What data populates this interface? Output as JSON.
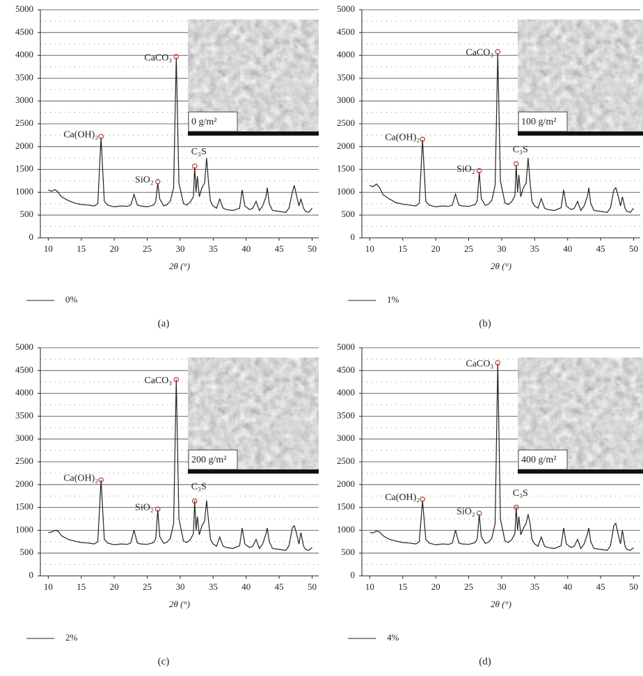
{
  "chart_data": [
    {
      "type": "line",
      "caption": "(a)",
      "x_label": "2θ (°)",
      "inset_label": "0 g/m²",
      "xlim": [
        8.8,
        51
      ],
      "xticks": [
        10,
        15,
        20,
        25,
        30,
        35,
        40,
        45,
        50
      ],
      "ylim": [
        0,
        5000
      ],
      "yticks": [
        0,
        500,
        1000,
        1500,
        2000,
        2500,
        3000,
        3500,
        4000,
        4500,
        5000
      ],
      "minor_yticks": [
        250,
        750,
        1250,
        1750,
        2250,
        2750,
        3250,
        3750,
        4250,
        4750
      ],
      "grid": true,
      "x": [
        10,
        10.5,
        11,
        11.5,
        12,
        13,
        14,
        15,
        16,
        17,
        17.5,
        18,
        18.5,
        19,
        20,
        21,
        22,
        22.5,
        23,
        23.5,
        24,
        25,
        26,
        26.3,
        26.6,
        26.9,
        27.5,
        28,
        28.5,
        29,
        29.4,
        29.8,
        30.5,
        31,
        31.5,
        32,
        32.2,
        32.4,
        32.6,
        32.9,
        33.3,
        33.7,
        34,
        34.3,
        34.6,
        35,
        35.5,
        36,
        36.5,
        37,
        38,
        39,
        39.4,
        39.8,
        40.5,
        41,
        41.5,
        42,
        42.5,
        43,
        43.2,
        43.5,
        44,
        45,
        46,
        46.5,
        47,
        47.3,
        47.6,
        48,
        48.3,
        48.7,
        49,
        49.5,
        50
      ],
      "series": [
        {
          "name": "0%",
          "color": "#222222",
          "values": [
            1050,
            1020,
            1060,
            1000,
            900,
            820,
            760,
            730,
            720,
            700,
            750,
            2200,
            800,
            720,
            680,
            700,
            690,
            720,
            950,
            720,
            700,
            680,
            720,
            800,
            1200,
            850,
            700,
            730,
            800,
            1100,
            3950,
            1200,
            750,
            720,
            780,
            900,
            1550,
            1000,
            1350,
            900,
            1100,
            1200,
            1750,
            1200,
            800,
            700,
            650,
            850,
            650,
            620,
            600,
            650,
            1050,
            700,
            620,
            650,
            800,
            600,
            700,
            900,
            1100,
            750,
            600,
            580,
            560,
            650,
            1000,
            1150,
            950,
            700,
            850,
            650,
            580,
            560,
            650
          ]
        }
      ],
      "annotations": [
        {
          "label": "Ca(OH)₂",
          "x": 18,
          "y": 2220
        },
        {
          "label": "SiO₂",
          "x": 26.6,
          "y": 1230
        },
        {
          "label": "CaCO₃",
          "x": 29.4,
          "y": 3970
        },
        {
          "label": "C₃S",
          "x": 32.2,
          "y": 1570
        }
      ]
    },
    {
      "type": "line",
      "caption": "(b)",
      "x_label": "2θ (°)",
      "inset_label": "100 g/m²",
      "xlim": [
        8.8,
        51
      ],
      "xticks": [
        10,
        15,
        20,
        25,
        30,
        35,
        40,
        45,
        50
      ],
      "ylim": [
        0,
        5000
      ],
      "yticks": [
        0,
        500,
        1000,
        1500,
        2000,
        2500,
        3000,
        3500,
        4000,
        4500,
        5000
      ],
      "minor_yticks": [
        250,
        750,
        1250,
        1750,
        2250,
        2750,
        3250,
        3750,
        4250,
        4750
      ],
      "grid": true,
      "x": [
        10,
        10.5,
        11,
        11.5,
        12,
        13,
        14,
        15,
        16,
        17,
        17.5,
        18,
        18.5,
        19,
        20,
        21,
        22,
        22.5,
        23,
        23.5,
        24,
        25,
        26,
        26.3,
        26.6,
        26.9,
        27.5,
        28,
        28.5,
        29,
        29.4,
        29.8,
        30.5,
        31,
        31.5,
        32,
        32.2,
        32.4,
        32.6,
        32.9,
        33.3,
        33.7,
        34,
        34.3,
        34.6,
        35,
        35.5,
        36,
        36.5,
        37,
        38,
        39,
        39.4,
        39.8,
        40.5,
        41,
        41.5,
        42,
        42.5,
        43,
        43.2,
        43.5,
        44,
        45,
        46,
        46.5,
        47,
        47.3,
        47.6,
        48,
        48.3,
        48.7,
        49,
        49.5,
        50
      ],
      "series": [
        {
          "name": "1%",
          "color": "#222222",
          "values": [
            1150,
            1120,
            1180,
            1100,
            950,
            850,
            770,
            740,
            720,
            700,
            760,
            2150,
            800,
            720,
            680,
            700,
            690,
            720,
            960,
            720,
            700,
            690,
            730,
            820,
            1450,
            860,
            710,
            740,
            820,
            1150,
            4050,
            1250,
            760,
            730,
            790,
            920,
            1600,
            1000,
            1380,
            900,
            1100,
            1200,
            1750,
            1220,
            800,
            700,
            650,
            860,
            650,
            620,
            600,
            660,
            1050,
            700,
            620,
            650,
            800,
            600,
            700,
            920,
            1100,
            750,
            600,
            580,
            560,
            660,
            1050,
            1100,
            950,
            700,
            900,
            650,
            580,
            560,
            650
          ]
        }
      ],
      "annotations": [
        {
          "label": "Ca(OH)₂",
          "x": 18,
          "y": 2160
        },
        {
          "label": "SiO₂",
          "x": 26.6,
          "y": 1470
        },
        {
          "label": "CaCO₃",
          "x": 29.4,
          "y": 4080
        },
        {
          "label": "C₃S",
          "x": 32.2,
          "y": 1620
        }
      ]
    },
    {
      "type": "line",
      "caption": "(c)",
      "x_label": "2θ (°)",
      "inset_label": "200 g/m²",
      "xlim": [
        8.8,
        51
      ],
      "xticks": [
        10,
        15,
        20,
        25,
        30,
        35,
        40,
        45,
        50
      ],
      "ylim": [
        0,
        5000
      ],
      "yticks": [
        0,
        500,
        1000,
        1500,
        2000,
        2500,
        3000,
        3500,
        4000,
        4500,
        5000
      ],
      "minor_yticks": [
        250,
        750,
        1250,
        1750,
        2250,
        2750,
        3250,
        3750,
        4250,
        4750
      ],
      "grid": true,
      "x": [
        10,
        10.5,
        11,
        11.5,
        12,
        13,
        14,
        15,
        16,
        17,
        17.5,
        18,
        18.5,
        19,
        20,
        21,
        22,
        22.5,
        23,
        23.5,
        24,
        25,
        26,
        26.3,
        26.6,
        26.9,
        27.5,
        28,
        28.5,
        29,
        29.4,
        29.8,
        30.5,
        31,
        31.5,
        32,
        32.2,
        32.4,
        32.6,
        32.9,
        33.3,
        33.7,
        34,
        34.3,
        34.6,
        35,
        35.5,
        36,
        36.5,
        37,
        38,
        39,
        39.4,
        39.8,
        40.5,
        41,
        41.5,
        42,
        42.5,
        43,
        43.2,
        43.5,
        44,
        45,
        46,
        46.5,
        47,
        47.3,
        47.6,
        48,
        48.3,
        48.7,
        49,
        49.5,
        50
      ],
      "series": [
        {
          "name": "2%",
          "color": "#222222",
          "values": [
            950,
            960,
            1000,
            980,
            880,
            800,
            760,
            730,
            720,
            700,
            750,
            2100,
            800,
            720,
            680,
            700,
            690,
            720,
            1000,
            720,
            700,
            690,
            730,
            820,
            1450,
            860,
            710,
            740,
            820,
            1150,
            4300,
            1250,
            760,
            730,
            790,
            920,
            1650,
            1000,
            1300,
            900,
            1100,
            1200,
            1650,
            1200,
            800,
            700,
            650,
            850,
            650,
            620,
            600,
            660,
            1050,
            700,
            620,
            650,
            800,
            600,
            700,
            920,
            1050,
            750,
            600,
            580,
            560,
            660,
            1050,
            1100,
            950,
            700,
            950,
            650,
            580,
            560,
            620
          ]
        }
      ],
      "annotations": [
        {
          "label": "Ca(OH)₂",
          "x": 18,
          "y": 2100
        },
        {
          "label": "SiO₂",
          "x": 26.6,
          "y": 1460
        },
        {
          "label": "CaCO₃",
          "x": 29.4,
          "y": 4300
        },
        {
          "label": "C₃S",
          "x": 32.2,
          "y": 1640
        }
      ]
    },
    {
      "type": "line",
      "caption": "(d)",
      "x_label": "2θ (°)",
      "inset_label": "400 g/m²",
      "xlim": [
        8.8,
        51
      ],
      "xticks": [
        10,
        15,
        20,
        25,
        30,
        35,
        40,
        45,
        50
      ],
      "ylim": [
        0,
        5000
      ],
      "yticks": [
        0,
        500,
        1000,
        1500,
        2000,
        2500,
        3000,
        3500,
        4000,
        4500,
        5000
      ],
      "minor_yticks": [
        250,
        750,
        1250,
        1750,
        2250,
        2750,
        3250,
        3750,
        4250,
        4750
      ],
      "grid": true,
      "x": [
        10,
        10.5,
        11,
        11.5,
        12,
        13,
        14,
        15,
        16,
        17,
        17.5,
        18,
        18.5,
        19,
        20,
        21,
        22,
        22.5,
        23,
        23.5,
        24,
        25,
        26,
        26.3,
        26.6,
        26.9,
        27.5,
        28,
        28.5,
        29,
        29.4,
        29.8,
        30.5,
        31,
        31.5,
        32,
        32.2,
        32.4,
        32.6,
        32.9,
        33.3,
        33.7,
        34,
        34.3,
        34.6,
        35,
        35.5,
        36,
        36.5,
        37,
        38,
        39,
        39.4,
        39.8,
        40.5,
        41,
        41.5,
        42,
        42.5,
        43,
        43.2,
        43.5,
        44,
        45,
        46,
        46.5,
        47,
        47.3,
        47.6,
        48,
        48.3,
        48.7,
        49,
        49.5,
        50
      ],
      "series": [
        {
          "name": "4%",
          "color": "#222222",
          "values": [
            950,
            940,
            980,
            960,
            880,
            800,
            760,
            730,
            720,
            700,
            750,
            1650,
            800,
            720,
            680,
            700,
            690,
            720,
            1000,
            720,
            700,
            690,
            730,
            820,
            1350,
            860,
            710,
            740,
            820,
            1150,
            4650,
            1250,
            760,
            730,
            790,
            920,
            1500,
            1000,
            1300,
            900,
            1050,
            1150,
            1350,
            1150,
            800,
            700,
            650,
            850,
            650,
            620,
            600,
            660,
            1050,
            700,
            620,
            650,
            800,
            600,
            700,
            920,
            1050,
            750,
            600,
            580,
            560,
            660,
            1100,
            1150,
            950,
            700,
            1000,
            650,
            580,
            560,
            620
          ]
        }
      ],
      "annotations": [
        {
          "label": "Ca(OH)₂",
          "x": 18,
          "y": 1680
        },
        {
          "label": "SiO₂",
          "x": 26.6,
          "y": 1370
        },
        {
          "label": "CaCO₃",
          "x": 29.4,
          "y": 4670
        },
        {
          "label": "C₃S",
          "x": 32.2,
          "y": 1500
        }
      ]
    }
  ]
}
